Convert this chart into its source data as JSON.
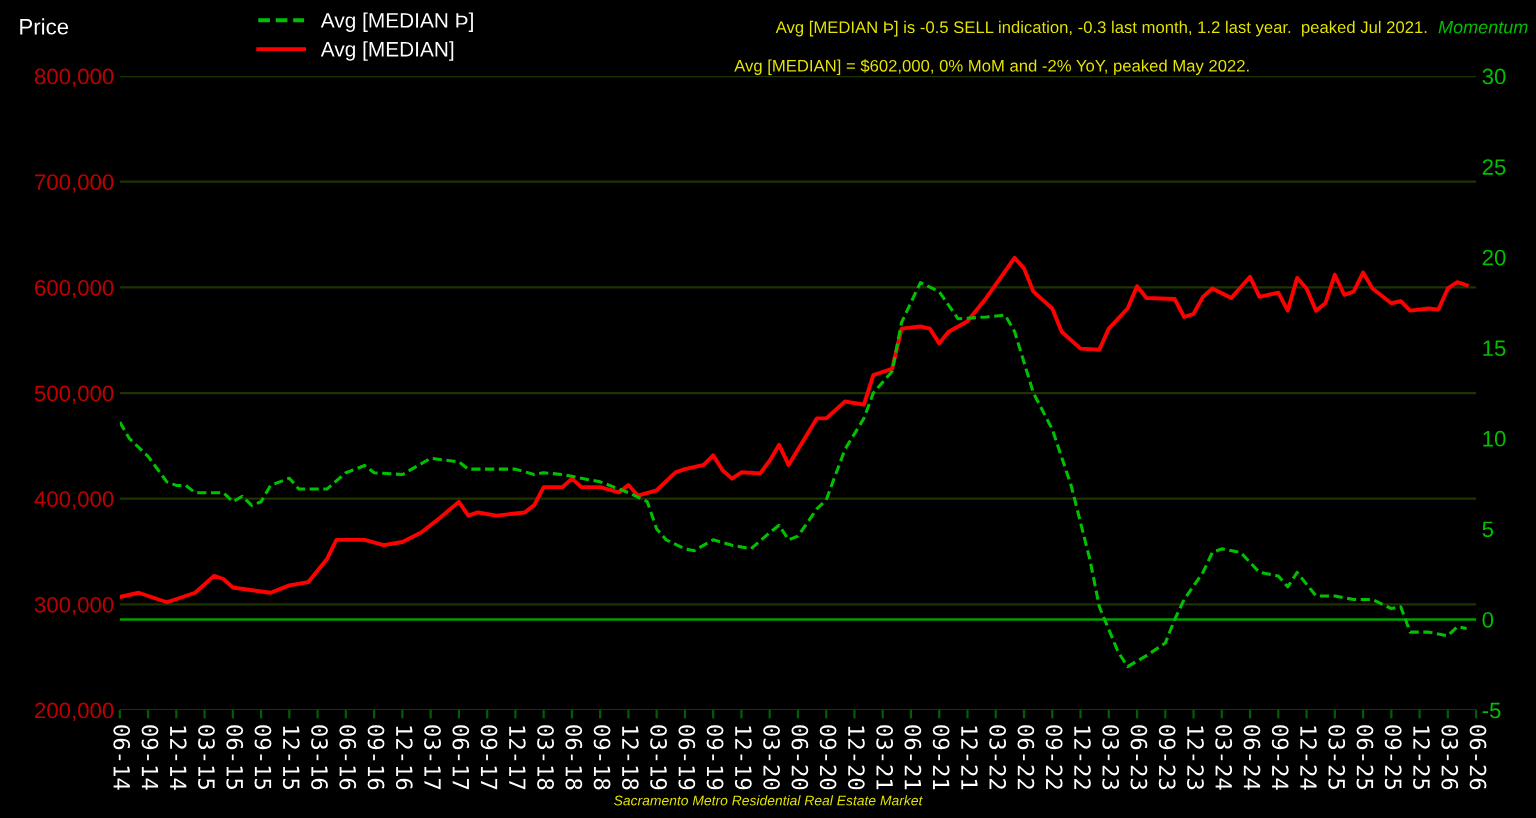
{
  "chart_data": {
    "type": "line",
    "ylabel": "Price",
    "y2label": "Momentum",
    "annotations": [
      "Avg [MEDIAN Þ] is -0.5 SELL indication, -0.3 last month, 1.2 last year.  peaked Jul 2021.",
      "Avg [MEDIAN] = $602,000, 0% MoM and -2% YoY, peaked May 2022.",
      "Sacramento Metro Residential Real Estate Market"
    ],
    "series": [
      {
        "name": "Avg [MEDIAN Þ]",
        "color": "#00c000",
        "axis": "y2",
        "line_style": "dashed",
        "x": [
          "2014-06",
          "2014-07",
          "2014-09",
          "2014-11",
          "2014-12",
          "2015-01",
          "2015-02",
          "2015-05",
          "2015-06",
          "2015-07",
          "2015-08",
          "2015-09",
          "2015-10",
          "2015-12",
          "2016-01",
          "2016-04",
          "2016-06",
          "2016-08",
          "2016-09",
          "2016-12",
          "2017-03",
          "2017-06",
          "2017-07",
          "2017-12",
          "2018-02",
          "2018-03",
          "2018-05",
          "2018-09",
          "2018-12",
          "2019-02",
          "2019-03",
          "2019-04",
          "2019-06",
          "2019-07",
          "2019-09",
          "2019-11",
          "2020-01",
          "2020-03",
          "2020-04",
          "2020-05",
          "2020-06",
          "2020-08",
          "2020-09",
          "2020-11",
          "2021-01",
          "2021-02",
          "2021-04",
          "2021-05",
          "2021-07",
          "2021-09",
          "2021-11",
          "2022-02",
          "2022-04",
          "2022-05",
          "2022-07",
          "2022-09",
          "2022-11",
          "2023-01",
          "2023-02",
          "2023-04",
          "2023-05",
          "2023-07",
          "2023-09",
          "2023-10",
          "2023-11",
          "2024-01",
          "2024-02",
          "2024-03",
          "2024-05",
          "2024-07",
          "2024-09",
          "2024-10",
          "2024-11",
          "2025-01",
          "2025-03",
          "2025-05",
          "2025-07",
          "2025-09",
          "2025-10",
          "2025-11",
          "2026-01",
          "2026-03",
          "2026-04",
          "2026-05"
        ],
        "values": [
          10.9,
          10.0,
          9.0,
          7.6,
          7.4,
          7.4,
          7.0,
          7.0,
          6.5,
          6.8,
          6.3,
          6.5,
          7.4,
          7.8,
          7.2,
          7.2,
          8.1,
          8.5,
          8.1,
          8.0,
          8.9,
          8.7,
          8.3,
          8.3,
          8.0,
          8.1,
          8.0,
          7.6,
          7.0,
          6.5,
          5.0,
          4.4,
          3.9,
          3.8,
          4.4,
          4.1,
          3.9,
          4.8,
          5.2,
          4.4,
          4.6,
          6.1,
          6.6,
          9.4,
          11.1,
          12.5,
          13.7,
          16.4,
          18.6,
          18.1,
          16.6,
          16.7,
          16.8,
          15.9,
          12.5,
          10.5,
          7.4,
          3.3,
          0.7,
          -1.8,
          -2.6,
          -2.0,
          -1.3,
          0,
          1.1,
          2.6,
          3.7,
          3.9,
          3.7,
          2.6,
          2.4,
          1.8,
          2.6,
          1.3,
          1.3,
          1.1,
          1.1,
          0.6,
          0.7,
          -0.7,
          -0.7,
          -0.9,
          -0.4,
          -0.5
        ]
      },
      {
        "name": "Avg [MEDIAN]",
        "color": "#ff0000",
        "line_style": "solid",
        "x": [
          "2014-06",
          "2014-08",
          "2014-11",
          "2015-02",
          "2015-04",
          "2015-05",
          "2015-06",
          "2015-10",
          "2015-12",
          "2016-02",
          "2016-04",
          "2016-05",
          "2016-08",
          "2016-10",
          "2016-12",
          "2017-02",
          "2017-04",
          "2017-06",
          "2017-07",
          "2017-08",
          "2017-10",
          "2018-01",
          "2018-02",
          "2018-03",
          "2018-05",
          "2018-06",
          "2018-07",
          "2018-09",
          "2018-11",
          "2018-12",
          "2019-01",
          "2019-03",
          "2019-05",
          "2019-06",
          "2019-08",
          "2019-09",
          "2019-10",
          "2019-11",
          "2019-12",
          "2020-02",
          "2020-03",
          "2020-04",
          "2020-05",
          "2020-08",
          "2020-09",
          "2020-11",
          "2021-01",
          "2021-02",
          "2021-04",
          "2021-05",
          "2021-07",
          "2021-08",
          "2021-09",
          "2021-10",
          "2021-12",
          "2022-02",
          "2022-05",
          "2022-06",
          "2022-07",
          "2022-09",
          "2022-10",
          "2022-12",
          "2023-02",
          "2023-03",
          "2023-05",
          "2023-06",
          "2023-07",
          "2023-10",
          "2023-11",
          "2023-12",
          "2024-01",
          "2024-02",
          "2024-04",
          "2024-06",
          "2024-07",
          "2024-09",
          "2024-10",
          "2024-11",
          "2024-12",
          "2025-01",
          "2025-02",
          "2025-03",
          "2025-04",
          "2025-05",
          "2025-06",
          "2025-07",
          "2025-09",
          "2025-10",
          "2025-11",
          "2026-01",
          "2026-02",
          "2026-03",
          "2026-04",
          "2026-05"
        ],
        "values": [
          307000,
          311000,
          302000,
          311000,
          327000,
          324000,
          316000,
          311000,
          318000,
          321000,
          343000,
          361000,
          361000,
          356000,
          359000,
          368000,
          382000,
          397000,
          384000,
          387000,
          384000,
          387000,
          394000,
          411000,
          411000,
          419000,
          411000,
          411000,
          406000,
          413000,
          403000,
          408000,
          425000,
          428000,
          432000,
          441000,
          427000,
          419000,
          425000,
          424000,
          436000,
          451000,
          432000,
          476000,
          476000,
          492000,
          489000,
          517000,
          523000,
          561000,
          563000,
          561000,
          547000,
          558000,
          568000,
          590000,
          628000,
          618000,
          596000,
          580000,
          558000,
          542000,
          541000,
          561000,
          580000,
          601000,
          590000,
          589000,
          572000,
          575000,
          591000,
          599000,
          590000,
          610000,
          591000,
          595000,
          578000,
          609000,
          599000,
          578000,
          585000,
          612000,
          593000,
          596000,
          614000,
          599000,
          585000,
          587000,
          578000,
          580000,
          579000,
          599000,
          605000,
          602000
        ]
      }
    ],
    "xlim": [
      "2014-06",
      "2026-06"
    ],
    "xticks": [
      {
        "value": "2014-06",
        "label": "06-14"
      },
      {
        "value": "2014-09",
        "label": "09-14"
      },
      {
        "value": "2014-12",
        "label": "12-14"
      },
      {
        "value": "2015-03",
        "label": "03-15"
      },
      {
        "value": "2015-06",
        "label": "06-15"
      },
      {
        "value": "2015-09",
        "label": "09-15"
      },
      {
        "value": "2015-12",
        "label": "12-15"
      },
      {
        "value": "2016-03",
        "label": "03-16"
      },
      {
        "value": "2016-06",
        "label": "06-16"
      },
      {
        "value": "2016-09",
        "label": "09-16"
      },
      {
        "value": "2016-12",
        "label": "12-16"
      },
      {
        "value": "2017-03",
        "label": "03-17"
      },
      {
        "value": "2017-06",
        "label": "06-17"
      },
      {
        "value": "2017-09",
        "label": "09-17"
      },
      {
        "value": "2017-12",
        "label": "12-17"
      },
      {
        "value": "2018-03",
        "label": "03-18"
      },
      {
        "value": "2018-06",
        "label": "06-18"
      },
      {
        "value": "2018-09",
        "label": "09-18"
      },
      {
        "value": "2018-12",
        "label": "12-18"
      },
      {
        "value": "2019-03",
        "label": "03-19"
      },
      {
        "value": "2019-06",
        "label": "06-19"
      },
      {
        "value": "2019-09",
        "label": "09-19"
      },
      {
        "value": "2019-12",
        "label": "12-19"
      },
      {
        "value": "2020-03",
        "label": "03-20"
      },
      {
        "value": "2020-06",
        "label": "06-20"
      },
      {
        "value": "2020-09",
        "label": "09-20"
      },
      {
        "value": "2020-12",
        "label": "12-20"
      },
      {
        "value": "2021-03",
        "label": "03-21"
      },
      {
        "value": "2021-06",
        "label": "06-21"
      },
      {
        "value": "2021-09",
        "label": "09-21"
      },
      {
        "value": "2021-12",
        "label": "12-21"
      },
      {
        "value": "2022-03",
        "label": "03-22"
      },
      {
        "value": "2022-06",
        "label": "06-22"
      },
      {
        "value": "2022-09",
        "label": "09-22"
      },
      {
        "value": "2022-12",
        "label": "12-22"
      },
      {
        "value": "2023-03",
        "label": "03-23"
      },
      {
        "value": "2023-06",
        "label": "06-23"
      },
      {
        "value": "2023-09",
        "label": "09-23"
      },
      {
        "value": "2023-12",
        "label": "12-23"
      },
      {
        "value": "2024-03",
        "label": "03-24"
      },
      {
        "value": "2024-06",
        "label": "06-24"
      },
      {
        "value": "2024-09",
        "label": "09-24"
      },
      {
        "value": "2024-12",
        "label": "12-24"
      },
      {
        "value": "2025-03",
        "label": "03-25"
      },
      {
        "value": "2025-06",
        "label": "06-25"
      },
      {
        "value": "2025-09",
        "label": "09-25"
      },
      {
        "value": "2025-12",
        "label": "12-25"
      },
      {
        "value": "2026-03",
        "label": "03-26"
      },
      {
        "value": "2026-06",
        "label": "06-26"
      }
    ],
    "ylim": [
      200000,
      800000
    ],
    "yticks": [
      {
        "value": 200000,
        "label": "200,000"
      },
      {
        "value": 300000,
        "label": "300,000"
      },
      {
        "value": 400000,
        "label": "400,000"
      },
      {
        "value": 500000,
        "label": "500,000"
      },
      {
        "value": 600000,
        "label": "600,000"
      },
      {
        "value": 700000,
        "label": "700,000"
      },
      {
        "value": 800000,
        "label": "800,000"
      }
    ],
    "y2lim": [
      -5,
      30
    ],
    "y2ticks": [
      -5,
      0,
      5,
      10,
      15,
      20,
      25,
      30
    ],
    "ref_lines": [
      {
        "axis": "y2",
        "value": 0,
        "color": "#00a000",
        "line_style": "solid"
      }
    ],
    "grid": "y",
    "legend": "top left"
  }
}
